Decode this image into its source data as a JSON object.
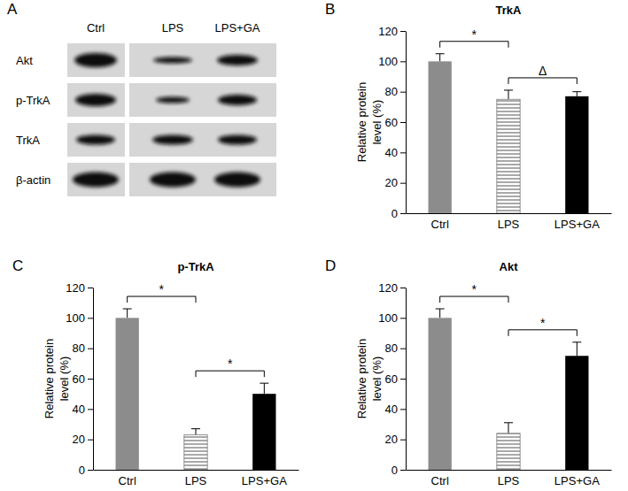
{
  "blot": {
    "panel": "A",
    "lanes": [
      "Ctrl",
      "LPS",
      "LPS+GA"
    ],
    "rows": [
      "Akt",
      "p-TrkA",
      "TrkA",
      "β-actin"
    ]
  },
  "chart_data": [
    {
      "type": "bar",
      "title": "TrkA",
      "y_label": "Relative protein level (%)",
      "categories": [
        "Ctrl",
        "LPS",
        "LPS+GA"
      ],
      "values": [
        100,
        75,
        77
      ],
      "errors": [
        5,
        6,
        3
      ],
      "colors": [
        "#8c8c8c",
        "#ffffff",
        "#000000"
      ],
      "ylim": [
        0,
        120
      ],
      "yticks": [
        0,
        20,
        40,
        60,
        80,
        100,
        120
      ],
      "grid": false,
      "annotations": [
        {
          "text": "B"
        },
        {
          "text": "*",
          "between": [
            "Ctrl",
            "LPS"
          ]
        },
        {
          "text": "Δ",
          "between": [
            "LPS",
            "LPS+GA"
          ]
        }
      ]
    },
    {
      "type": "bar",
      "title": "p-TrkA",
      "y_label": "Relative protein level (%)",
      "categories": [
        "Ctrl",
        "LPS",
        "LPS+GA"
      ],
      "values": [
        100,
        23,
        50
      ],
      "errors": [
        6,
        4,
        7
      ],
      "colors": [
        "#8c8c8c",
        "#ffffff",
        "#000000"
      ],
      "ylim": [
        0,
        120
      ],
      "yticks": [
        0,
        20,
        40,
        60,
        80,
        100,
        120
      ],
      "grid": false,
      "annotations": [
        {
          "text": "C"
        },
        {
          "text": "*",
          "between": [
            "Ctrl",
            "LPS"
          ]
        },
        {
          "text": "*",
          "between": [
            "LPS",
            "LPS+GA"
          ]
        }
      ]
    },
    {
      "type": "bar",
      "title": "Akt",
      "y_label": "Relative protein level (%)",
      "categories": [
        "Ctrl",
        "LPS",
        "LPS+GA"
      ],
      "values": [
        100,
        24,
        75
      ],
      "errors": [
        6,
        7,
        9
      ],
      "colors": [
        "#8c8c8c",
        "#ffffff",
        "#000000"
      ],
      "ylim": [
        0,
        120
      ],
      "yticks": [
        0,
        20,
        40,
        60,
        80,
        100,
        120
      ],
      "grid": false,
      "annotations": [
        {
          "text": "D"
        },
        {
          "text": "*",
          "between": [
            "Ctrl",
            "LPS"
          ]
        },
        {
          "text": "*",
          "between": [
            "LPS",
            "LPS+GA"
          ]
        }
      ]
    }
  ]
}
